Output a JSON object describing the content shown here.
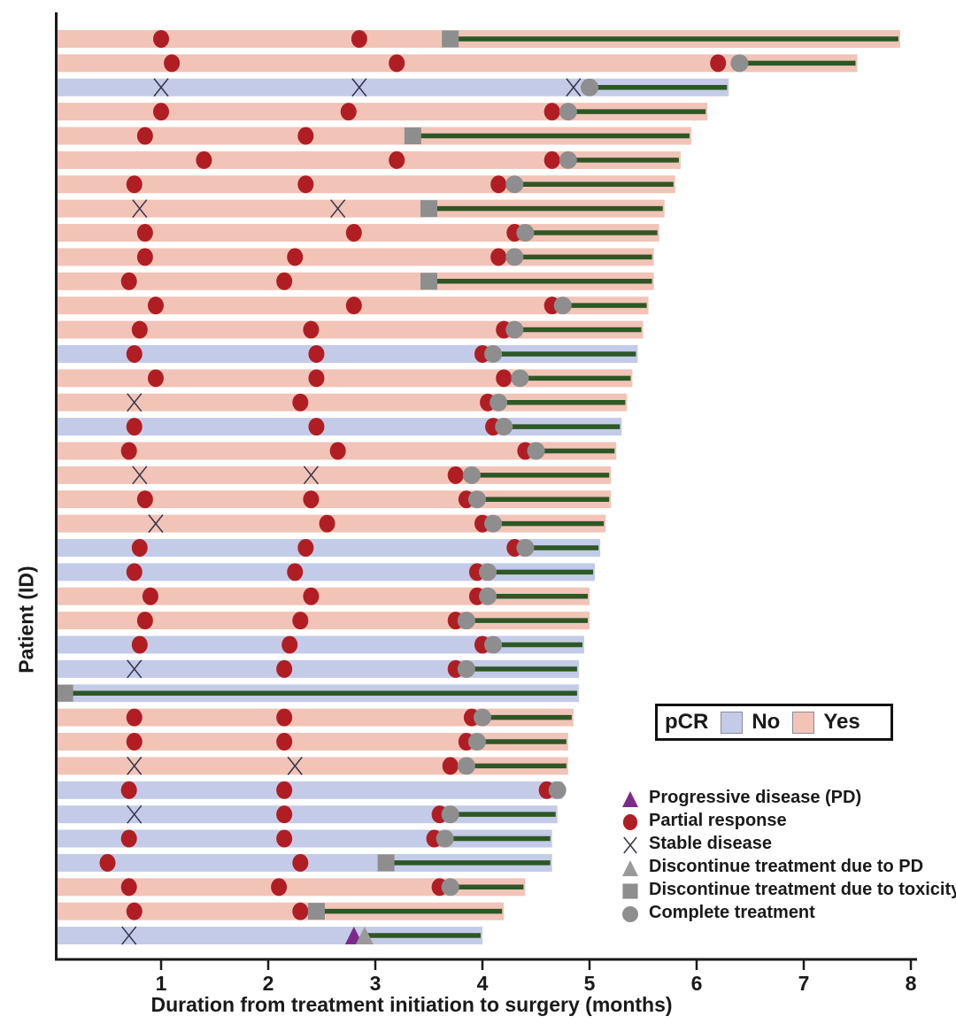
{
  "axes": {
    "x_label": "Duration from treatment initiation to surgery (months)",
    "y_label": "Patient (ID)",
    "x_ticks": [
      "1",
      "2",
      "3",
      "4",
      "5",
      "6",
      "7",
      "8"
    ],
    "x_range": [
      0,
      8
    ]
  },
  "pcr_legend": {
    "title": "pCR",
    "items": [
      {
        "label": "No",
        "color": "#c4cbe8"
      },
      {
        "label": "Yes",
        "color": "#f1c4b7"
      }
    ]
  },
  "marker_legend": [
    {
      "type": "progressive_disease",
      "label": "Progressive disease (PD)"
    },
    {
      "type": "partial_response",
      "label": "Partial response"
    },
    {
      "type": "stable_disease",
      "label": "Stable disease"
    },
    {
      "type": "discontinue_pd",
      "label": "Discontinue treatment due to PD"
    },
    {
      "type": "discontinue_toxicity",
      "label": "Discontinue treatment due to toxicity"
    },
    {
      "type": "complete_treatment",
      "label": "Complete treatment"
    }
  ],
  "colors": {
    "pcr_yes_bar": "#f1c4b7",
    "pcr_no_bar": "#c4cbe8",
    "partial_response": "#b01e24",
    "stable_disease": "#34344a",
    "progressive_disease": "#7d2b8a",
    "discontinue_pd": "#9a9a9a",
    "discontinue_toxicity": "#8e8e8e",
    "complete_treatment": "#8e8e8e",
    "treatment_line": "#2d5725",
    "axis": "#1a1a1a"
  },
  "chart_data": {
    "type": "bar",
    "subtype": "swimmer",
    "xlabel": "Duration from treatment initiation to surgery (months)",
    "ylabel": "Patient (ID)",
    "xlim": [
      0,
      8
    ],
    "grid": false,
    "rows": [
      {
        "pcr": "Yes",
        "end": 7.9,
        "events": [
          {
            "t": 1.0,
            "type": "partial_response"
          },
          {
            "t": 2.85,
            "type": "partial_response"
          }
        ],
        "stop": {
          "t": 3.7,
          "type": "discontinue_toxicity"
        }
      },
      {
        "pcr": "Yes",
        "end": 7.5,
        "events": [
          {
            "t": 1.1,
            "type": "partial_response"
          },
          {
            "t": 3.2,
            "type": "partial_response"
          },
          {
            "t": 6.2,
            "type": "partial_response"
          }
        ],
        "stop": {
          "t": 6.4,
          "type": "complete_treatment"
        }
      },
      {
        "pcr": "No",
        "end": 6.3,
        "events": [
          {
            "t": 1.0,
            "type": "stable_disease"
          },
          {
            "t": 2.85,
            "type": "stable_disease"
          },
          {
            "t": 4.85,
            "type": "stable_disease"
          }
        ],
        "stop": {
          "t": 5.0,
          "type": "complete_treatment"
        }
      },
      {
        "pcr": "Yes",
        "end": 6.1,
        "events": [
          {
            "t": 1.0,
            "type": "partial_response"
          },
          {
            "t": 2.75,
            "type": "partial_response"
          },
          {
            "t": 4.65,
            "type": "partial_response"
          }
        ],
        "stop": {
          "t": 4.8,
          "type": "complete_treatment"
        }
      },
      {
        "pcr": "Yes",
        "end": 5.95,
        "events": [
          {
            "t": 0.85,
            "type": "partial_response"
          },
          {
            "t": 2.35,
            "type": "partial_response"
          }
        ],
        "stop": {
          "t": 3.35,
          "type": "discontinue_toxicity"
        }
      },
      {
        "pcr": "Yes",
        "end": 5.85,
        "events": [
          {
            "t": 1.4,
            "type": "partial_response"
          },
          {
            "t": 3.2,
            "type": "partial_response"
          },
          {
            "t": 4.65,
            "type": "partial_response"
          }
        ],
        "stop": {
          "t": 4.8,
          "type": "complete_treatment"
        }
      },
      {
        "pcr": "Yes",
        "end": 5.8,
        "events": [
          {
            "t": 0.75,
            "type": "partial_response"
          },
          {
            "t": 2.35,
            "type": "partial_response"
          },
          {
            "t": 4.15,
            "type": "partial_response"
          }
        ],
        "stop": {
          "t": 4.3,
          "type": "complete_treatment"
        }
      },
      {
        "pcr": "Yes",
        "end": 5.7,
        "events": [
          {
            "t": 0.8,
            "type": "stable_disease"
          },
          {
            "t": 2.65,
            "type": "stable_disease"
          }
        ],
        "stop": {
          "t": 3.5,
          "type": "discontinue_toxicity"
        }
      },
      {
        "pcr": "Yes",
        "end": 5.65,
        "events": [
          {
            "t": 0.85,
            "type": "partial_response"
          },
          {
            "t": 2.8,
            "type": "partial_response"
          },
          {
            "t": 4.3,
            "type": "partial_response"
          }
        ],
        "stop": {
          "t": 4.4,
          "type": "complete_treatment"
        }
      },
      {
        "pcr": "Yes",
        "end": 5.6,
        "events": [
          {
            "t": 0.85,
            "type": "partial_response"
          },
          {
            "t": 2.25,
            "type": "partial_response"
          },
          {
            "t": 4.15,
            "type": "partial_response"
          }
        ],
        "stop": {
          "t": 4.3,
          "type": "complete_treatment"
        }
      },
      {
        "pcr": "Yes",
        "end": 5.6,
        "events": [
          {
            "t": 0.7,
            "type": "partial_response"
          },
          {
            "t": 2.15,
            "type": "partial_response"
          }
        ],
        "stop": {
          "t": 3.5,
          "type": "discontinue_toxicity"
        }
      },
      {
        "pcr": "Yes",
        "end": 5.55,
        "events": [
          {
            "t": 0.95,
            "type": "partial_response"
          },
          {
            "t": 2.8,
            "type": "partial_response"
          },
          {
            "t": 4.65,
            "type": "partial_response"
          }
        ],
        "stop": {
          "t": 4.75,
          "type": "complete_treatment"
        }
      },
      {
        "pcr": "Yes",
        "end": 5.5,
        "events": [
          {
            "t": 0.8,
            "type": "partial_response"
          },
          {
            "t": 2.4,
            "type": "partial_response"
          },
          {
            "t": 4.2,
            "type": "partial_response"
          }
        ],
        "stop": {
          "t": 4.3,
          "type": "complete_treatment"
        }
      },
      {
        "pcr": "No",
        "end": 5.45,
        "events": [
          {
            "t": 0.75,
            "type": "partial_response"
          },
          {
            "t": 2.45,
            "type": "partial_response"
          },
          {
            "t": 4.0,
            "type": "partial_response"
          }
        ],
        "stop": {
          "t": 4.1,
          "type": "complete_treatment"
        }
      },
      {
        "pcr": "Yes",
        "end": 5.4,
        "events": [
          {
            "t": 0.95,
            "type": "partial_response"
          },
          {
            "t": 2.45,
            "type": "partial_response"
          },
          {
            "t": 4.2,
            "type": "partial_response"
          }
        ],
        "stop": {
          "t": 4.35,
          "type": "complete_treatment"
        }
      },
      {
        "pcr": "Yes",
        "end": 5.35,
        "events": [
          {
            "t": 0.75,
            "type": "stable_disease"
          },
          {
            "t": 2.3,
            "type": "partial_response"
          },
          {
            "t": 4.05,
            "type": "partial_response"
          }
        ],
        "stop": {
          "t": 4.15,
          "type": "complete_treatment"
        }
      },
      {
        "pcr": "No",
        "end": 5.3,
        "events": [
          {
            "t": 0.75,
            "type": "partial_response"
          },
          {
            "t": 2.45,
            "type": "partial_response"
          },
          {
            "t": 4.1,
            "type": "partial_response"
          }
        ],
        "stop": {
          "t": 4.2,
          "type": "complete_treatment"
        }
      },
      {
        "pcr": "Yes",
        "end": 5.25,
        "events": [
          {
            "t": 0.7,
            "type": "partial_response"
          },
          {
            "t": 2.65,
            "type": "partial_response"
          },
          {
            "t": 4.4,
            "type": "partial_response"
          }
        ],
        "stop": {
          "t": 4.5,
          "type": "complete_treatment"
        }
      },
      {
        "pcr": "Yes",
        "end": 5.2,
        "events": [
          {
            "t": 0.8,
            "type": "stable_disease"
          },
          {
            "t": 2.4,
            "type": "stable_disease"
          },
          {
            "t": 3.75,
            "type": "partial_response"
          }
        ],
        "stop": {
          "t": 3.9,
          "type": "complete_treatment"
        }
      },
      {
        "pcr": "Yes",
        "end": 5.2,
        "events": [
          {
            "t": 0.85,
            "type": "partial_response"
          },
          {
            "t": 2.4,
            "type": "partial_response"
          },
          {
            "t": 3.85,
            "type": "partial_response"
          }
        ],
        "stop": {
          "t": 3.95,
          "type": "complete_treatment"
        }
      },
      {
        "pcr": "Yes",
        "end": 5.15,
        "events": [
          {
            "t": 0.95,
            "type": "stable_disease"
          },
          {
            "t": 2.55,
            "type": "partial_response"
          },
          {
            "t": 4.0,
            "type": "partial_response"
          }
        ],
        "stop": {
          "t": 4.1,
          "type": "complete_treatment"
        }
      },
      {
        "pcr": "No",
        "end": 5.1,
        "events": [
          {
            "t": 0.8,
            "type": "partial_response"
          },
          {
            "t": 2.35,
            "type": "partial_response"
          },
          {
            "t": 4.3,
            "type": "partial_response"
          }
        ],
        "stop": {
          "t": 4.4,
          "type": "complete_treatment"
        }
      },
      {
        "pcr": "No",
        "end": 5.05,
        "events": [
          {
            "t": 0.75,
            "type": "partial_response"
          },
          {
            "t": 2.25,
            "type": "partial_response"
          },
          {
            "t": 3.95,
            "type": "partial_response"
          }
        ],
        "stop": {
          "t": 4.05,
          "type": "complete_treatment"
        }
      },
      {
        "pcr": "Yes",
        "end": 5.0,
        "events": [
          {
            "t": 0.9,
            "type": "partial_response"
          },
          {
            "t": 2.4,
            "type": "partial_response"
          },
          {
            "t": 3.95,
            "type": "partial_response"
          }
        ],
        "stop": {
          "t": 4.05,
          "type": "complete_treatment"
        }
      },
      {
        "pcr": "Yes",
        "end": 5.0,
        "events": [
          {
            "t": 0.85,
            "type": "partial_response"
          },
          {
            "t": 2.3,
            "type": "partial_response"
          },
          {
            "t": 3.75,
            "type": "partial_response"
          }
        ],
        "stop": {
          "t": 3.85,
          "type": "complete_treatment"
        }
      },
      {
        "pcr": "No",
        "end": 4.95,
        "events": [
          {
            "t": 0.8,
            "type": "partial_response"
          },
          {
            "t": 2.2,
            "type": "partial_response"
          },
          {
            "t": 4.0,
            "type": "partial_response"
          }
        ],
        "stop": {
          "t": 4.1,
          "type": "complete_treatment"
        }
      },
      {
        "pcr": "No",
        "end": 4.9,
        "events": [
          {
            "t": 0.75,
            "type": "stable_disease"
          },
          {
            "t": 2.15,
            "type": "partial_response"
          },
          {
            "t": 3.75,
            "type": "partial_response"
          }
        ],
        "stop": {
          "t": 3.85,
          "type": "complete_treatment"
        }
      },
      {
        "pcr": "No",
        "end": 4.9,
        "events": [],
        "stop": {
          "t": 0.1,
          "type": "discontinue_toxicity"
        }
      },
      {
        "pcr": "Yes",
        "end": 4.85,
        "events": [
          {
            "t": 0.75,
            "type": "partial_response"
          },
          {
            "t": 2.15,
            "type": "partial_response"
          },
          {
            "t": 3.9,
            "type": "partial_response"
          }
        ],
        "stop": {
          "t": 4.0,
          "type": "complete_treatment"
        }
      },
      {
        "pcr": "Yes",
        "end": 4.8,
        "events": [
          {
            "t": 0.75,
            "type": "partial_response"
          },
          {
            "t": 2.15,
            "type": "partial_response"
          },
          {
            "t": 3.85,
            "type": "partial_response"
          }
        ],
        "stop": {
          "t": 3.95,
          "type": "complete_treatment"
        }
      },
      {
        "pcr": "Yes",
        "end": 4.8,
        "events": [
          {
            "t": 0.75,
            "type": "stable_disease"
          },
          {
            "t": 2.25,
            "type": "stable_disease"
          },
          {
            "t": 3.7,
            "type": "partial_response"
          }
        ],
        "stop": {
          "t": 3.85,
          "type": "complete_treatment"
        }
      },
      {
        "pcr": "No",
        "end": 4.75,
        "events": [
          {
            "t": 0.7,
            "type": "partial_response"
          },
          {
            "t": 2.15,
            "type": "partial_response"
          },
          {
            "t": 4.6,
            "type": "partial_response"
          }
        ],
        "stop": {
          "t": 4.7,
          "type": "complete_treatment"
        }
      },
      {
        "pcr": "No",
        "end": 4.7,
        "events": [
          {
            "t": 0.75,
            "type": "stable_disease"
          },
          {
            "t": 2.15,
            "type": "partial_response"
          },
          {
            "t": 3.6,
            "type": "partial_response"
          }
        ],
        "stop": {
          "t": 3.7,
          "type": "complete_treatment"
        }
      },
      {
        "pcr": "No",
        "end": 4.65,
        "events": [
          {
            "t": 0.7,
            "type": "partial_response"
          },
          {
            "t": 2.15,
            "type": "partial_response"
          },
          {
            "t": 3.55,
            "type": "partial_response"
          }
        ],
        "stop": {
          "t": 3.65,
          "type": "complete_treatment"
        }
      },
      {
        "pcr": "No",
        "end": 4.65,
        "events": [
          {
            "t": 0.5,
            "type": "partial_response"
          },
          {
            "t": 2.3,
            "type": "partial_response"
          }
        ],
        "stop": {
          "t": 3.1,
          "type": "discontinue_toxicity"
        }
      },
      {
        "pcr": "Yes",
        "end": 4.4,
        "events": [
          {
            "t": 0.7,
            "type": "partial_response"
          },
          {
            "t": 2.1,
            "type": "partial_response"
          },
          {
            "t": 3.6,
            "type": "partial_response"
          }
        ],
        "stop": {
          "t": 3.7,
          "type": "complete_treatment"
        }
      },
      {
        "pcr": "Yes",
        "end": 4.2,
        "events": [
          {
            "t": 0.75,
            "type": "partial_response"
          },
          {
            "t": 2.3,
            "type": "partial_response"
          }
        ],
        "stop": {
          "t": 2.45,
          "type": "discontinue_toxicity"
        }
      },
      {
        "pcr": "No",
        "end": 4.0,
        "events": [
          {
            "t": 0.7,
            "type": "stable_disease"
          },
          {
            "t": 2.8,
            "type": "progressive_disease"
          }
        ],
        "stop": {
          "t": 2.9,
          "type": "discontinue_pd"
        }
      }
    ]
  }
}
